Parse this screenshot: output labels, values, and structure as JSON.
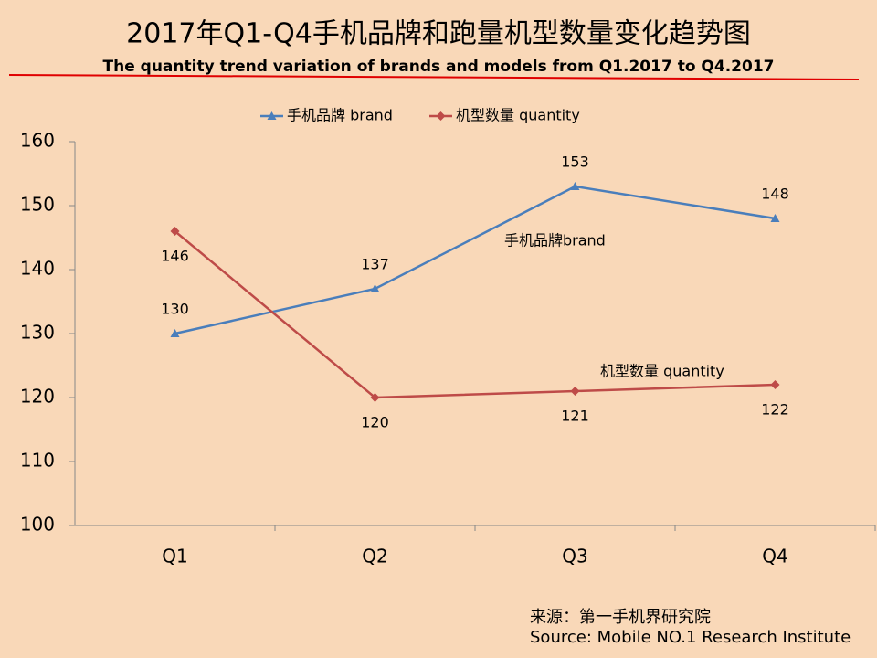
{
  "chart_data": {
    "type": "line",
    "title": "2017年Q1-Q4手机品牌和跑量机型数量变化趋势图",
    "subtitle": "The quantity trend variation of brands and models from Q1.2017 to Q4.2017",
    "categories": [
      "Q1",
      "Q2",
      "Q3",
      "Q4"
    ],
    "series": [
      {
        "name": "手机品牌 brand",
        "color": "#4a7ebb",
        "marker": "triangle",
        "values": [
          130,
          137,
          153,
          148
        ]
      },
      {
        "name": "机型数量 quantity",
        "color": "#be4b48",
        "marker": "diamond",
        "values": [
          146,
          120,
          121,
          122
        ]
      }
    ],
    "annotations": [
      "手机品牌brand",
      "机型数量 quantity"
    ],
    "ylim": [
      100,
      160
    ],
    "yticks": [
      100,
      110,
      120,
      130,
      140,
      150,
      160
    ],
    "grid": false,
    "legend": "top",
    "source": [
      "来源：第一手机界研究院",
      "Source: Mobile NO.1 Research Institute"
    ]
  }
}
